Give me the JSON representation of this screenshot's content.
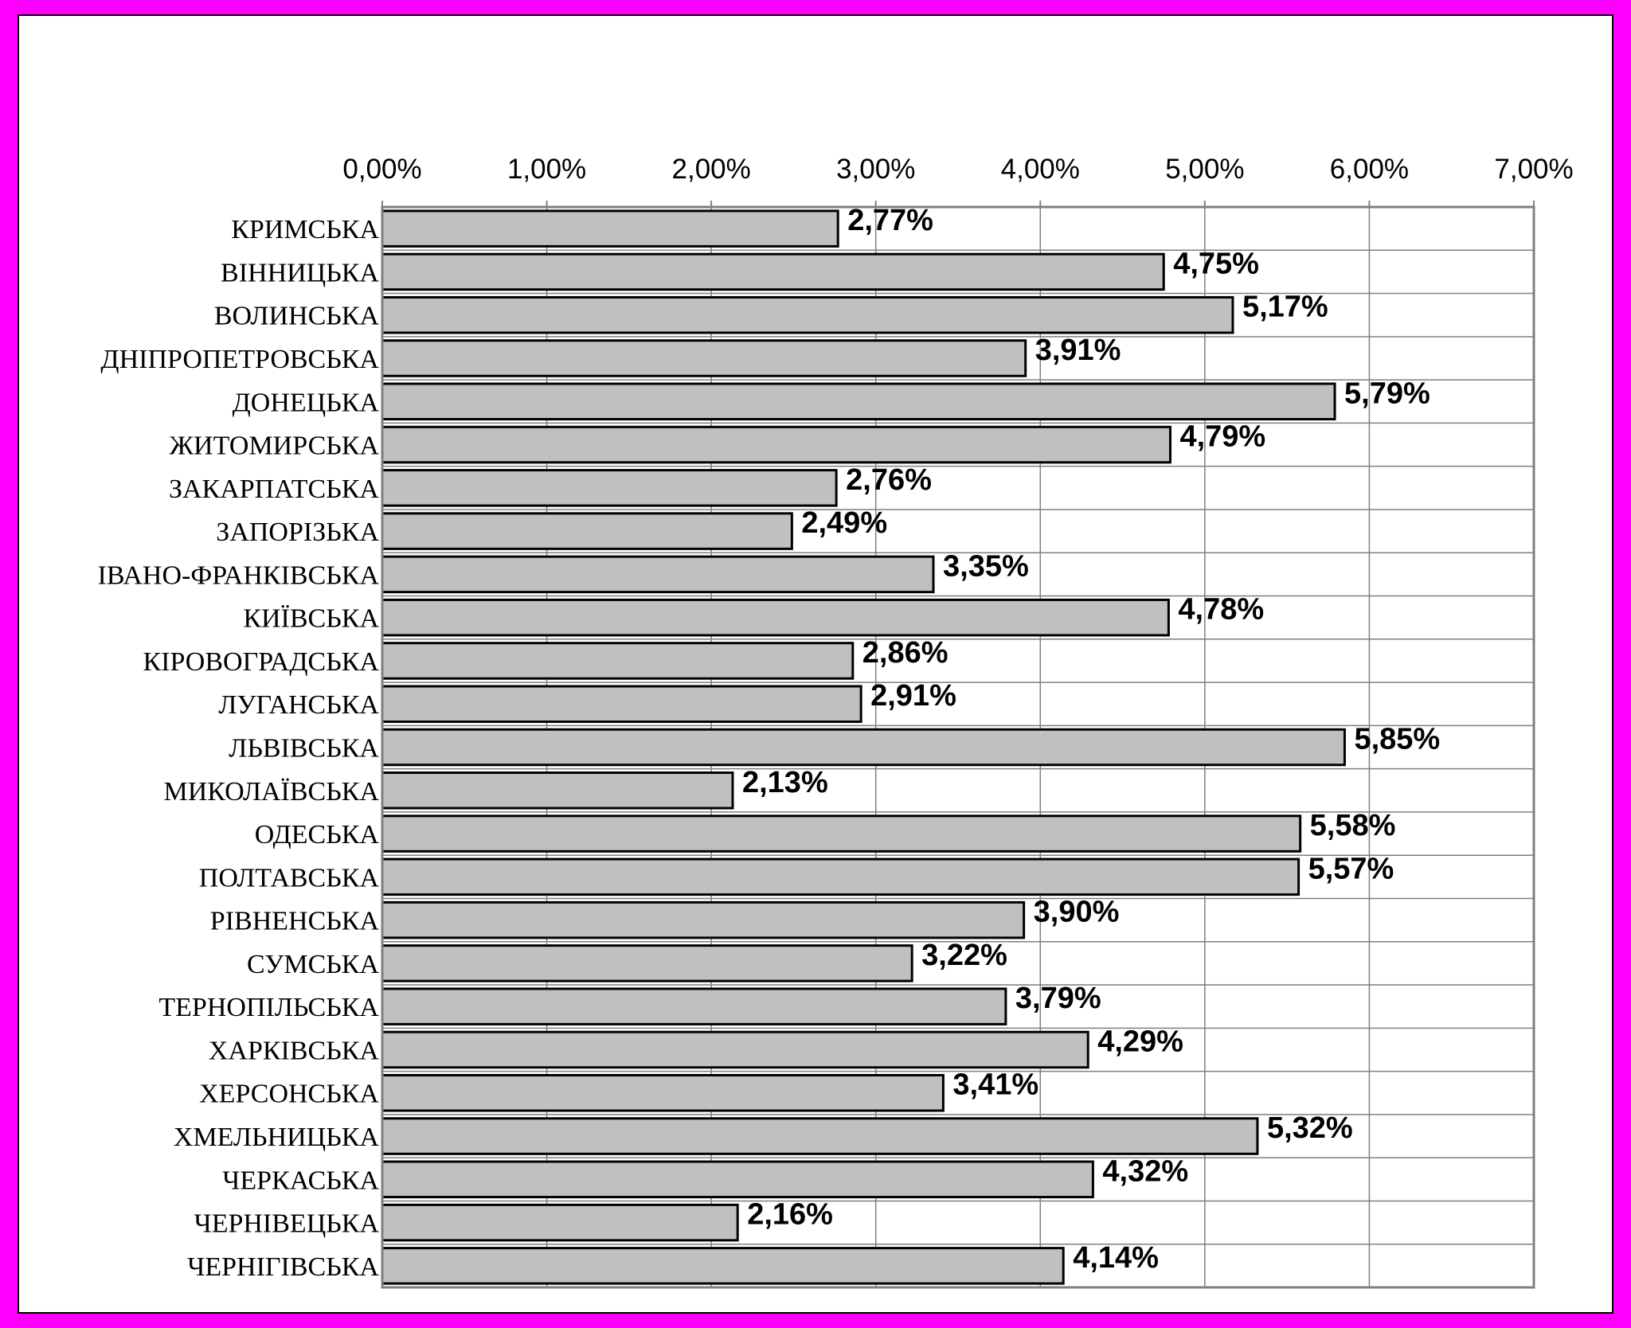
{
  "chart_data": {
    "type": "bar",
    "orientation": "horizontal",
    "title": "",
    "xlabel": "",
    "ylabel": "",
    "xlim": [
      0,
      7
    ],
    "x_ticks": [
      0,
      1,
      2,
      3,
      4,
      5,
      6,
      7
    ],
    "x_tick_labels": [
      "0,00%",
      "1,00%",
      "2,00%",
      "3,00%",
      "4,00%",
      "5,00%",
      "6,00%",
      "7,00%"
    ],
    "tick_position": "top",
    "grid": true,
    "legend": "none",
    "categories": [
      "КРИМСЬКА",
      "ВІННИЦЬКА",
      "ВОЛИНСЬКА",
      "ДНІПРОПЕТРОВСЬКА",
      "ДОНЕЦЬКА",
      "ЖИТОМИРСЬКА",
      "ЗАКАРПАТСЬКА",
      "ЗАПОРІЗЬКА",
      "ІВАНО-ФРАНКІВСЬКА",
      "КИЇВСЬКА",
      "КІРОВОГРАДСЬКА",
      "ЛУГАНСЬКА",
      "ЛЬВІВСЬКА",
      "МИКОЛАЇВСЬКА",
      "ОДЕСЬКА",
      "ПОЛТАВСЬКА",
      "РІВНЕНСЬКА",
      "СУМСЬКА",
      "ТЕРНОПІЛЬСЬКА",
      "ХАРКІВСЬКА",
      "ХЕРСОНСЬКА",
      "ХМЕЛЬНИЦЬКА",
      "ЧЕРКАСЬКА",
      "ЧЕРНІВЕЦЬКА",
      "ЧЕРНІГІВСЬКА"
    ],
    "values": [
      2.77,
      4.75,
      5.17,
      3.91,
      5.79,
      4.79,
      2.76,
      2.49,
      3.35,
      4.78,
      2.86,
      2.91,
      5.85,
      2.13,
      5.58,
      5.57,
      3.9,
      3.22,
      3.79,
      4.29,
      3.41,
      5.32,
      4.32,
      2.16,
      4.14
    ],
    "value_labels": [
      "2,77%",
      "4,75%",
      "5,17%",
      "3,91%",
      "5,79%",
      "4,79%",
      "2,76%",
      "2,49%",
      "3,35%",
      "4,78%",
      "2,86%",
      "2,91%",
      "5,85%",
      "2,13%",
      "5,58%",
      "5,57%",
      "3,90%",
      "3,22%",
      "3,79%",
      "4,29%",
      "3,41%",
      "5,32%",
      "4,32%",
      "2,16%",
      "4,14%"
    ],
    "colors": {
      "bar_fill": "#c0c0c0",
      "bar_stroke": "#000000",
      "grid": "#7f7f7f",
      "frame": "#ff00ff",
      "background": "#ffffff"
    }
  }
}
